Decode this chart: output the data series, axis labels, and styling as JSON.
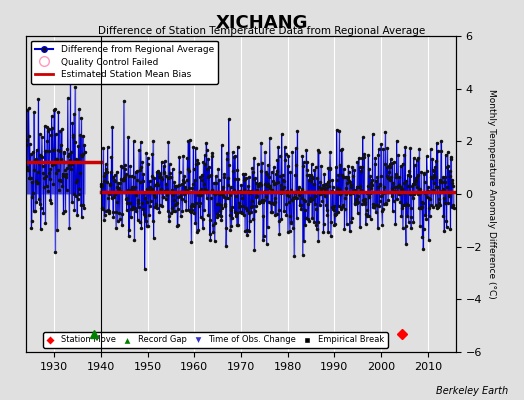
{
  "title": "XICHANG",
  "subtitle": "Difference of Station Temperature Data from Regional Average",
  "ylabel": "Monthly Temperature Anomaly Difference (°C)",
  "credit": "Berkeley Earth",
  "xlim": [
    1924,
    2016
  ],
  "ylim": [
    -6,
    6
  ],
  "yticks": [
    -6,
    -4,
    -2,
    0,
    2,
    4,
    6
  ],
  "xticks": [
    1930,
    1940,
    1950,
    1960,
    1970,
    1980,
    1990,
    2000,
    2010
  ],
  "bg_color": "#e0e0e0",
  "blue_color": "#0000cc",
  "red_color": "#cc0000",
  "fill_color": "#aaaaee",
  "dot_color": "#111111",
  "grid_color": "#ffffff",
  "bias1_y": 1.2,
  "bias2_y": 0.08,
  "bias1_xstart": 1924.0,
  "bias1_xend": 1940.0,
  "bias2_xstart": 1940.0,
  "bias2_xend": 2015.5,
  "break_x": 1940.0,
  "record_gap_x": 1938.5,
  "station_move_x": 2004.5,
  "period1_start": 1924.0,
  "period1_end": 1936.5,
  "period2_start": 1940.0,
  "period2_end": 2015.5,
  "seed": 42
}
